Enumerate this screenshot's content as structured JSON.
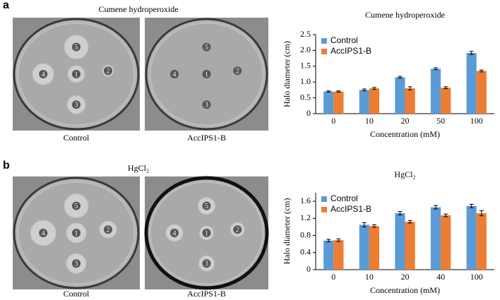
{
  "panels": [
    {
      "label": "a",
      "title": "Cumene hydroperoxide",
      "plates": [
        {
          "caption": "Control",
          "disks": [
            "1",
            "2",
            "3",
            "4",
            "5"
          ]
        },
        {
          "caption": "AccIPS1-B",
          "disks": [
            "1",
            "2",
            "3",
            "4",
            "5"
          ]
        }
      ]
    },
    {
      "label": "b",
      "title": "HgCl₂",
      "plates": [
        {
          "caption": "Control",
          "disks": [
            "1",
            "2",
            "3",
            "4",
            "5"
          ]
        },
        {
          "caption": "AccIPS1-B",
          "disks": [
            "1",
            "2",
            "3",
            "4",
            "5"
          ]
        }
      ]
    }
  ],
  "chart_data": [
    {
      "type": "bar",
      "title": "Cumene hydroperoxide",
      "xlabel": "Concentration (mM)",
      "ylabel": "Halo diameter (cm)",
      "categories": [
        "0",
        "10",
        "20",
        "50",
        "100"
      ],
      "series": [
        {
          "name": "Control",
          "color": "#5b9bd5",
          "values": [
            0.7,
            0.75,
            1.15,
            1.42,
            1.92
          ],
          "errors": [
            0.02,
            0.03,
            0.03,
            0.03,
            0.05
          ]
        },
        {
          "name": "AccIPS1-B",
          "color": "#ed7d31",
          "values": [
            0.7,
            0.8,
            0.8,
            0.82,
            1.35
          ],
          "errors": [
            0.02,
            0.03,
            0.05,
            0.03,
            0.03
          ]
        }
      ],
      "ylim": [
        0,
        2.5
      ],
      "yticks": [
        0,
        0.5,
        {
          "value": 1,
          "label": "1.0"
        },
        1.5,
        {
          "value": 2,
          "label": "2.0"
        },
        2.5
      ],
      "legend": "top-left"
    },
    {
      "type": "bar",
      "title": "HgCl₂",
      "xlabel": "Concentration (mM)",
      "ylabel": "Halo diameter (cm)",
      "categories": [
        "0",
        "10",
        "20",
        "40",
        "100"
      ],
      "series": [
        {
          "name": "Control",
          "color": "#5b9bd5",
          "values": [
            0.68,
            1.05,
            1.32,
            1.46,
            1.49
          ],
          "errors": [
            0.03,
            0.05,
            0.04,
            0.04,
            0.04
          ]
        },
        {
          "name": "AccIPS1-B",
          "color": "#ed7d31",
          "values": [
            0.69,
            1.02,
            1.12,
            1.27,
            1.32
          ],
          "errors": [
            0.03,
            0.03,
            0.03,
            0.03,
            0.06
          ]
        }
      ],
      "ylim": [
        0,
        1.8
      ],
      "yticks": [
        0,
        0.4,
        0.8,
        1.2,
        1.6
      ],
      "legend": "top-left"
    }
  ]
}
